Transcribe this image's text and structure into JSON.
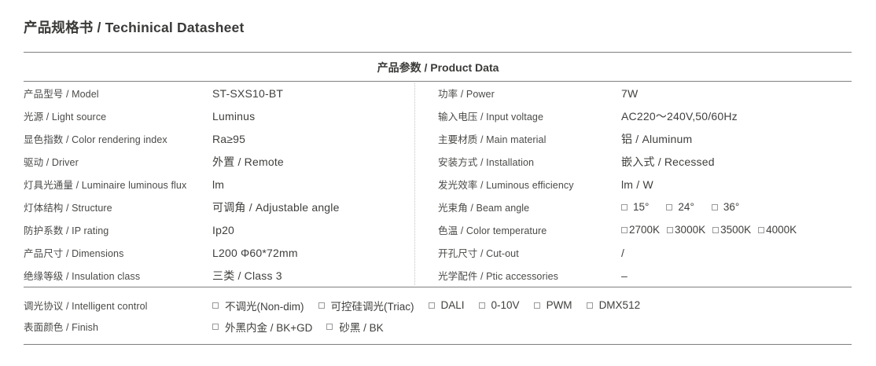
{
  "page_title": "产品规格书 / Techinical Datasheet",
  "section_title": "产品参数 / Product Data",
  "table": {
    "left": [
      {
        "label": "产品型号 / Model",
        "value": "ST-SXS10-BT"
      },
      {
        "label": "光源 / Light source",
        "value": "Luminus"
      },
      {
        "label": "显色指数 / Color rendering index",
        "value": "Ra≥95"
      },
      {
        "label": "驱动 / Driver",
        "value": "外置 / Remote"
      },
      {
        "label": "灯具光通量 / Luminaire luminous flux",
        "value": "lm"
      },
      {
        "label": "灯体结构 / Structure",
        "value": "可调角 / Adjustable angle"
      },
      {
        "label": "防护系数  / IP  rating",
        "value": "Ip20"
      },
      {
        "label": "产品尺寸  / Dimensions",
        "value": "L200  Φ60*72mm"
      },
      {
        "label": "绝缘等级  / Insulation class",
        "value": "三类 / Class 3"
      }
    ],
    "right": [
      {
        "label": "功率 / Power",
        "value": "7W"
      },
      {
        "label": "输入电压 / Input voltage",
        "value": "AC220～240V,50/60Hz"
      },
      {
        "label": "主要材质 / Main material",
        "value": "铝 / Aluminum"
      },
      {
        "label": "安装方式 / Installation",
        "value": "嵌入式 / Recessed"
      },
      {
        "label": "发光效率 / Luminous efficiency",
        "value": "lm / W"
      },
      {
        "label": "光束角 / Beam angle",
        "options": [
          "15°",
          "24°",
          "36°"
        ]
      },
      {
        "label": "色温 / Color temperature",
        "options": [
          "2700K",
          "3000K",
          "3500K",
          "4000K"
        ]
      },
      {
        "label": "开孔尺寸 / Cut-out",
        "value": "/"
      },
      {
        "label": "光学配件 / Ptic accessories",
        "value": "–"
      }
    ]
  },
  "bottom": [
    {
      "label": "调光协议  / Intelligent control",
      "options": [
        "不调光(Non-dim)",
        "可控硅调光(Triac)",
        "DALI",
        "0-10V",
        "PWM",
        "DMX512"
      ]
    },
    {
      "label": "表面颜色  / Finish",
      "options": [
        "外黑内金 / BK+GD",
        "砂黑 / BK"
      ]
    }
  ],
  "colors": {
    "text": "#3f3f3d",
    "rule_line": "#7f7f7f",
    "dotted_divider": "#c3c3c3",
    "checkbox_border": "#9a9a9a"
  }
}
